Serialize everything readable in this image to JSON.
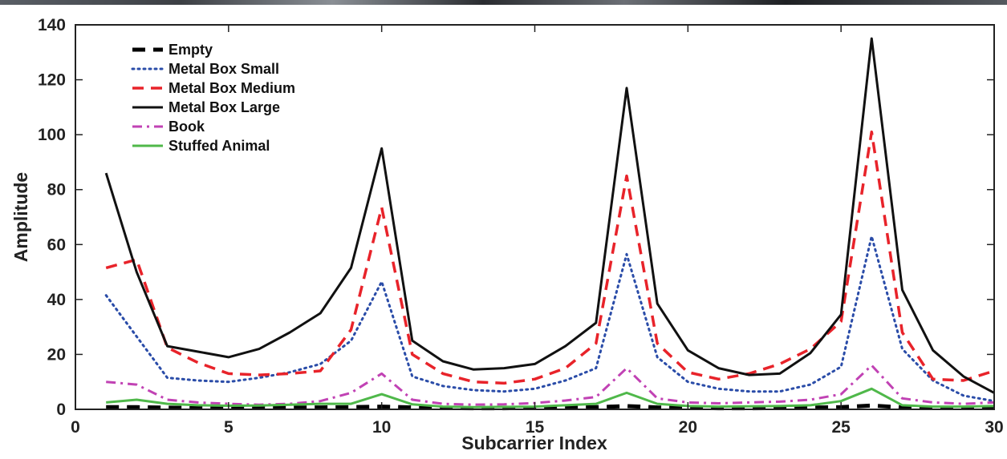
{
  "chart_data": {
    "type": "line",
    "title": "",
    "xlabel": "Subcarrier Index",
    "ylabel": "Amplitude",
    "xlim": [
      0,
      30
    ],
    "ylim": [
      0,
      140
    ],
    "xticks": [
      0,
      5,
      10,
      15,
      20,
      25,
      30
    ],
    "yticks": [
      0,
      20,
      40,
      60,
      80,
      100,
      120,
      140
    ],
    "grid": false,
    "legend_position": "top-left",
    "x": [
      1,
      2,
      3,
      4,
      5,
      6,
      7,
      8,
      9,
      10,
      11,
      12,
      13,
      14,
      15,
      16,
      17,
      18,
      19,
      20,
      21,
      22,
      23,
      24,
      25,
      26,
      27,
      28,
      29,
      30
    ],
    "series": [
      {
        "name": "Empty",
        "color": "#000000",
        "style": "dashed-thick",
        "values": [
          0.8,
          0.8,
          0.6,
          0.5,
          0.5,
          0.6,
          0.6,
          0.7,
          0.8,
          1.0,
          0.7,
          0.5,
          0.4,
          0.4,
          0.5,
          0.6,
          0.8,
          1.2,
          0.7,
          0.5,
          0.4,
          0.4,
          0.5,
          0.6,
          0.8,
          1.4,
          0.7,
          0.5,
          0.5,
          0.6
        ]
      },
      {
        "name": "Metal Box Small",
        "color": "#2a4ca8",
        "style": "dotted",
        "values": [
          41.5,
          26.5,
          11.5,
          10.5,
          10,
          11.5,
          13.5,
          16.5,
          25,
          46.5,
          12,
          8.5,
          7,
          6.5,
          7.5,
          10.5,
          15,
          56.5,
          19,
          10,
          7.5,
          6.5,
          6.5,
          9,
          15.5,
          63,
          22,
          10.5,
          5,
          3
        ]
      },
      {
        "name": "Metal Box Medium",
        "color": "#e8232a",
        "style": "dashed",
        "values": [
          51.5,
          54.5,
          22.5,
          17,
          13,
          12.5,
          13,
          14,
          29,
          73.5,
          20,
          13,
          10,
          9.5,
          11,
          15,
          24,
          85,
          24,
          13.5,
          11,
          13,
          16.5,
          22,
          32,
          101,
          28,
          11,
          10.5,
          14
        ]
      },
      {
        "name": "Metal Box Large",
        "color": "#111111",
        "style": "solid",
        "values": [
          86,
          50,
          23,
          21,
          19,
          22,
          28,
          35,
          51.5,
          95,
          25,
          17.5,
          14.5,
          15,
          16.5,
          23,
          31.5,
          117,
          38.5,
          21.5,
          15,
          12.5,
          13,
          20.5,
          34.5,
          135,
          43.5,
          21.5,
          12,
          6
        ]
      },
      {
        "name": "Book",
        "color": "#c142b4",
        "style": "dashdot",
        "values": [
          10,
          9,
          3.5,
          2.5,
          2,
          1.7,
          2,
          3,
          6,
          13,
          3.5,
          2,
          1.7,
          1.8,
          2.3,
          3.2,
          4.5,
          15,
          4,
          2.5,
          2.2,
          2.5,
          2.8,
          3.5,
          5.5,
          16,
          4,
          2.5,
          2,
          2.5
        ]
      },
      {
        "name": "Stuffed Animal",
        "color": "#4fb84a",
        "style": "solid",
        "values": [
          2.5,
          3.5,
          2,
          1.5,
          1.3,
          1.4,
          1.7,
          2,
          2,
          5.5,
          1.8,
          1,
          0.8,
          0.9,
          1,
          1.5,
          2,
          6,
          2,
          1.2,
          1,
          1.1,
          1.2,
          1.5,
          3,
          7.5,
          1.5,
          1,
          1,
          1.2
        ]
      }
    ]
  }
}
